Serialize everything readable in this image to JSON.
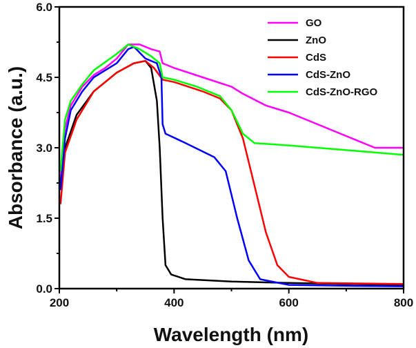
{
  "chart_data": {
    "type": "line",
    "title": "",
    "xlabel": "Wavelength (nm)",
    "ylabel": "Absorbance (a.u.)",
    "xlim": [
      200,
      800
    ],
    "ylim": [
      0,
      6.0
    ],
    "xticks": [
      200,
      400,
      600,
      800
    ],
    "xtick_labels": [
      "200",
      "400",
      "600",
      "800"
    ],
    "xminor": [
      300,
      500,
      700
    ],
    "yticks": [
      0,
      1.5,
      3.0,
      4.5,
      6.0
    ],
    "ytick_labels": [
      "0.0",
      "1.5",
      "3.0",
      "4.5",
      "6.0"
    ],
    "yminor": [
      0.75,
      2.25,
      3.75,
      5.25
    ],
    "grid": false,
    "legend_position": "top-right",
    "series": [
      {
        "name": "GO",
        "color": "#ff00ff",
        "x": [
          202,
          210,
          220,
          240,
          260,
          280,
          300,
          320,
          340,
          360,
          375,
          380,
          400,
          450,
          500,
          520,
          560,
          600,
          650,
          700,
          750,
          800
        ],
        "y": [
          2.3,
          3.4,
          3.9,
          4.3,
          4.55,
          4.7,
          4.9,
          5.2,
          5.2,
          5.1,
          5.05,
          4.8,
          4.7,
          4.5,
          4.3,
          4.15,
          3.9,
          3.75,
          3.5,
          3.25,
          3.0,
          3.0
        ]
      },
      {
        "name": "ZnO",
        "color": "#000000",
        "x": [
          202,
          210,
          230,
          260,
          300,
          330,
          350,
          360,
          370,
          375,
          380,
          385,
          395,
          420,
          500,
          600,
          700,
          800
        ],
        "y": [
          2.2,
          3.0,
          3.7,
          4.2,
          4.6,
          4.8,
          4.85,
          4.7,
          4.0,
          3.0,
          1.5,
          0.5,
          0.3,
          0.2,
          0.15,
          0.12,
          0.1,
          0.08
        ]
      },
      {
        "name": "CdS",
        "color": "#ff0000",
        "x": [
          202,
          210,
          230,
          260,
          300,
          330,
          350,
          365,
          380,
          400,
          450,
          480,
          500,
          520,
          540,
          560,
          580,
          600,
          650,
          800
        ],
        "y": [
          1.8,
          2.9,
          3.6,
          4.2,
          4.6,
          4.8,
          4.85,
          4.7,
          4.45,
          4.4,
          4.2,
          4.05,
          3.8,
          3.2,
          2.2,
          1.2,
          0.5,
          0.25,
          0.12,
          0.1
        ]
      },
      {
        "name": "CdS-ZnO",
        "color": "#0000ff",
        "x": [
          202,
          210,
          220,
          240,
          260,
          300,
          320,
          330,
          350,
          370,
          378,
          380,
          385,
          420,
          470,
          490,
          510,
          530,
          550,
          600,
          700,
          800
        ],
        "y": [
          2.1,
          3.2,
          3.8,
          4.2,
          4.5,
          4.8,
          5.1,
          5.15,
          4.9,
          4.8,
          4.5,
          3.5,
          3.3,
          3.1,
          2.8,
          2.5,
          1.5,
          0.6,
          0.2,
          0.08,
          0.06,
          0.05
        ]
      },
      {
        "name": "CdS-ZnO-RGO",
        "color": "#00ff00",
        "x": [
          202,
          210,
          220,
          240,
          260,
          300,
          320,
          340,
          360,
          375,
          380,
          400,
          440,
          480,
          500,
          520,
          540,
          600,
          700,
          800
        ],
        "y": [
          2.5,
          3.6,
          4.0,
          4.35,
          4.65,
          5.0,
          5.2,
          5.1,
          4.95,
          4.8,
          4.5,
          4.45,
          4.3,
          4.1,
          3.8,
          3.3,
          3.1,
          3.05,
          2.95,
          2.85
        ]
      }
    ]
  }
}
